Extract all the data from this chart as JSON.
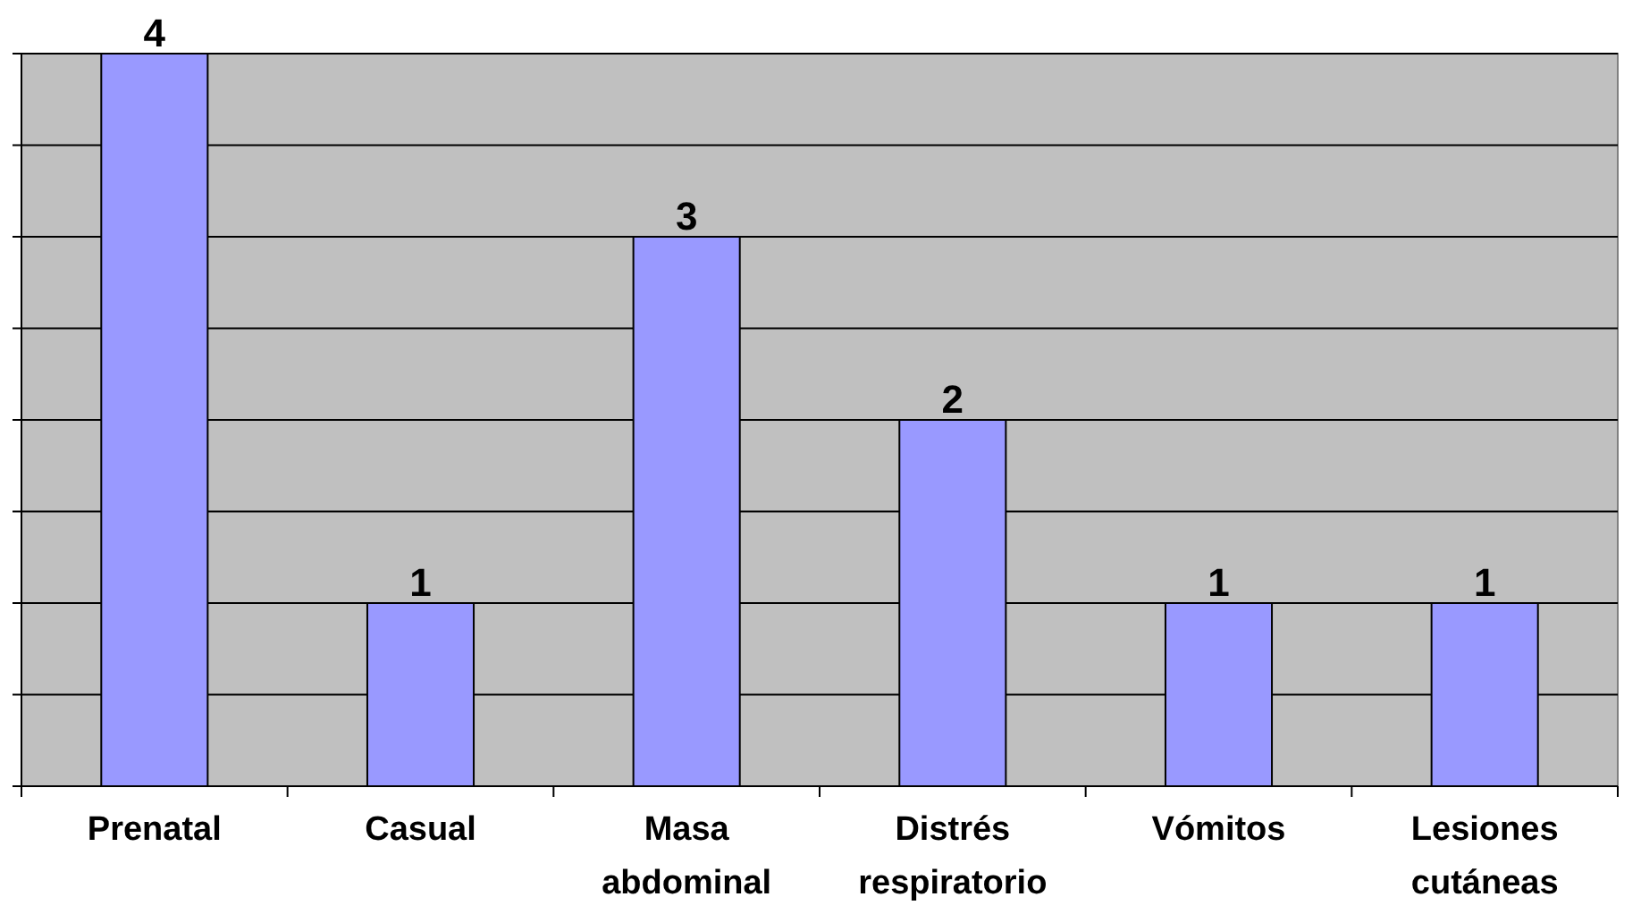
{
  "chart_data": {
    "type": "bar",
    "categories": [
      "Prenatal",
      "Casual",
      "Masa abdominal",
      "Distrés respiratorio",
      "Vómitos",
      "Lesiones cutáneas"
    ],
    "values": [
      4,
      1,
      3,
      2,
      1,
      1
    ],
    "color": "#9999ff",
    "data_labels": true,
    "grid": "y",
    "tick_labels": "x",
    "ylim": [
      0,
      4
    ],
    "yticks": [
      {
        "value": 0,
        "label": null
      },
      {
        "value": 0.5,
        "label": null
      },
      {
        "value": 1,
        "label": null
      },
      {
        "value": 1.5,
        "label": null
      },
      {
        "value": 2,
        "label": null
      },
      {
        "value": 2.5,
        "label": null
      },
      {
        "value": 3,
        "label": null
      },
      {
        "value": 3.5,
        "label": null
      },
      {
        "value": 4,
        "label": null
      }
    ]
  }
}
